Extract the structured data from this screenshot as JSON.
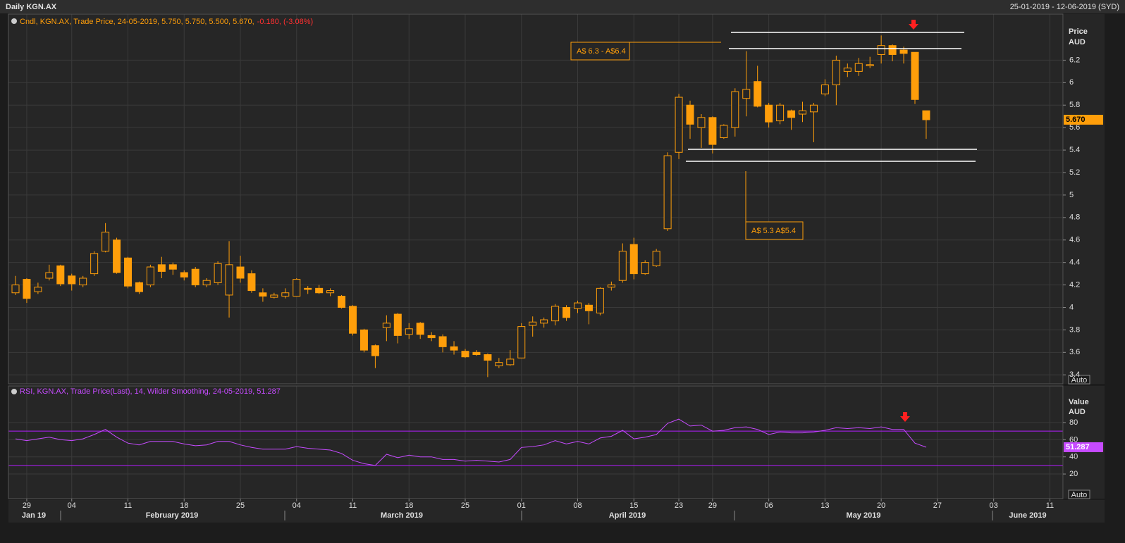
{
  "header": {
    "title": "Daily KGN.AX",
    "range": "25-01-2019 - 12-06-2019 (SYD)"
  },
  "chart_data": [
    {
      "type": "candlestick",
      "legend": "Cndl, KGN.AX, Trade Price, 24-05-2019, 5.750, 5.750, 5.500, 5.670,",
      "legend_change": "-0.180, (-3.08%)",
      "y_axis_label": "Price",
      "y_axis_unit": "AUD",
      "scale_button": "Auto",
      "last_value_label": "5.670",
      "color": "#ff9e0a",
      "annotations": [
        "A$ 6.3 - A$6.4",
        "A$ 5.3  A$5.4"
      ],
      "ylim": [
        3.32,
        6.61
      ],
      "yticks": [
        3.4,
        3.6,
        3.8,
        4,
        4.2,
        4.4,
        4.6,
        4.8,
        5,
        5.2,
        5.4,
        5.6,
        5.8,
        6,
        6.2
      ],
      "grid": true,
      "open": [
        4.13,
        4.25,
        4.14,
        4.26,
        4.37,
        4.28,
        4.2,
        4.3,
        4.5,
        4.6,
        4.44,
        4.22,
        4.2,
        4.38,
        4.38,
        4.31,
        4.34,
        4.2,
        4.22,
        4.11,
        4.36,
        4.3,
        4.13,
        4.09,
        4.1,
        4.1,
        4.17,
        4.17,
        4.13,
        4.1,
        4.01,
        3.8,
        3.66,
        3.82,
        3.94,
        3.76,
        3.86,
        3.75,
        3.74,
        3.65,
        3.61,
        3.6,
        3.58,
        3.48,
        3.49,
        3.55,
        3.84,
        3.86,
        3.88,
        4.0,
        3.99,
        4.02,
        3.95,
        4.18,
        4.24,
        4.56,
        4.3,
        4.37,
        4.7,
        5.38,
        5.8,
        5.6,
        5.69,
        5.51,
        5.6,
        5.86,
        6.01,
        5.8,
        5.66,
        5.75,
        5.72,
        5.74,
        5.9,
        5.98,
        6.1,
        6.1,
        6.15,
        6.25,
        6.33,
        6.29,
        6.27,
        5.75,
        null,
        null,
        null,
        null,
        null,
        null,
        null,
        null,
        null,
        null,
        null
      ],
      "high": [
        4.28,
        4.26,
        4.22,
        4.38,
        4.38,
        4.3,
        4.28,
        4.5,
        4.75,
        4.62,
        4.45,
        4.23,
        4.38,
        4.45,
        4.4,
        4.33,
        4.36,
        4.26,
        4.41,
        4.59,
        4.46,
        4.33,
        4.17,
        4.13,
        4.17,
        4.26,
        4.19,
        4.2,
        4.17,
        4.11,
        4.02,
        3.81,
        3.67,
        3.93,
        3.95,
        3.86,
        3.87,
        3.78,
        3.76,
        3.7,
        3.63,
        3.62,
        3.59,
        3.55,
        3.62,
        3.86,
        3.92,
        3.91,
        4.03,
        4.02,
        4.06,
        4.04,
        4.18,
        4.23,
        4.57,
        4.62,
        4.42,
        4.52,
        5.38,
        5.9,
        5.84,
        5.72,
        5.7,
        5.63,
        5.95,
        6.28,
        6.15,
        5.82,
        5.82,
        5.76,
        5.83,
        5.82,
        6.03,
        6.24,
        6.17,
        6.22,
        6.23,
        6.42,
        6.34,
        6.32,
        6.27,
        5.75,
        null,
        null,
        null,
        null,
        null,
        null,
        null,
        null,
        null,
        null,
        null
      ],
      "low": [
        4.11,
        4.04,
        4.12,
        4.24,
        4.19,
        4.15,
        4.18,
        4.28,
        4.49,
        4.3,
        4.17,
        4.12,
        4.18,
        4.26,
        4.29,
        4.24,
        4.18,
        4.18,
        4.2,
        3.91,
        4.22,
        4.13,
        4.05,
        4.08,
        4.08,
        4.1,
        4.12,
        4.12,
        4.1,
        3.99,
        3.75,
        3.6,
        3.46,
        3.7,
        3.68,
        3.72,
        3.72,
        3.7,
        3.6,
        3.58,
        3.55,
        3.57,
        3.38,
        3.46,
        3.48,
        3.55,
        3.74,
        3.82,
        3.84,
        3.88,
        3.95,
        3.85,
        3.93,
        4.15,
        4.22,
        4.25,
        4.29,
        4.36,
        4.68,
        5.32,
        5.5,
        5.42,
        5.37,
        5.5,
        5.52,
        5.7,
        5.78,
        5.6,
        5.63,
        5.58,
        5.65,
        5.47,
        5.88,
        5.8,
        6.05,
        6.06,
        6.13,
        6.17,
        6.19,
        6.17,
        5.81,
        5.5,
        null,
        null,
        null,
        null,
        null,
        null,
        null,
        null,
        null,
        null,
        null
      ],
      "close": [
        4.2,
        4.08,
        4.18,
        4.31,
        4.21,
        4.21,
        4.26,
        4.48,
        4.67,
        4.31,
        4.19,
        4.14,
        4.36,
        4.32,
        4.34,
        4.27,
        4.2,
        4.24,
        4.39,
        4.38,
        4.26,
        4.15,
        4.1,
        4.11,
        4.13,
        4.25,
        4.16,
        4.13,
        4.15,
        4.0,
        3.77,
        3.62,
        3.57,
        3.86,
        3.75,
        3.81,
        3.76,
        3.73,
        3.65,
        3.62,
        3.56,
        3.58,
        3.53,
        3.51,
        3.54,
        3.83,
        3.87,
        3.89,
        4.01,
        3.91,
        4.04,
        3.97,
        4.17,
        4.2,
        4.5,
        4.3,
        4.4,
        4.5,
        5.35,
        5.87,
        5.63,
        5.69,
        5.45,
        5.62,
        5.92,
        5.94,
        5.79,
        5.65,
        5.8,
        5.69,
        5.75,
        5.8,
        5.98,
        6.2,
        6.13,
        6.17,
        6.16,
        6.33,
        6.25,
        6.26,
        5.85,
        5.67,
        null,
        null,
        null,
        null,
        null,
        null,
        null,
        null,
        null,
        null,
        null
      ]
    },
    {
      "type": "line",
      "legend": "RSI, KGN.AX, Trade Price(Last), 14, Wilder Smoothing, 24-05-2019, 51.287",
      "y_axis_label": "Value",
      "y_axis_unit": "AUD",
      "scale_button": "Auto",
      "last_value_label": "51.287",
      "color": "#c64bff",
      "level_color": "#b21cff",
      "levels": [
        70,
        30
      ],
      "ylim": [
        -8.7,
        122.7
      ],
      "yticks": [
        20,
        40,
        60,
        80
      ],
      "grid": true,
      "categories": [
        null,
        "29",
        null,
        null,
        null,
        "04",
        null,
        null,
        null,
        null,
        "11",
        null,
        null,
        null,
        null,
        "18",
        null,
        null,
        null,
        null,
        "25",
        null,
        null,
        null,
        null,
        "04",
        null,
        null,
        null,
        null,
        "11",
        null,
        null,
        null,
        null,
        "18",
        null,
        null,
        null,
        null,
        "25",
        null,
        null,
        null,
        null,
        "01",
        null,
        null,
        null,
        null,
        "08",
        null,
        null,
        null,
        null,
        "15",
        null,
        null,
        null,
        "23",
        null,
        null,
        "29",
        null,
        null,
        null,
        null,
        "06",
        null,
        null,
        null,
        null,
        "13",
        null,
        null,
        null,
        null,
        "20",
        null,
        null,
        null,
        null,
        "27",
        null,
        null,
        null,
        null,
        "03",
        null,
        null,
        null,
        null,
        "11"
      ],
      "months": [
        "Jan 19",
        "February 2019",
        "March 2019",
        "April 2019",
        "May 2019",
        "June 2019"
      ],
      "values": [
        61,
        59,
        61,
        63,
        60,
        59,
        61,
        66,
        72,
        63,
        56,
        54,
        58,
        58,
        58,
        55,
        53,
        54,
        58,
        58,
        54,
        51,
        49,
        49,
        49,
        52,
        50,
        49,
        48,
        44,
        36,
        32,
        30,
        43,
        39,
        42,
        40,
        40,
        37,
        37,
        35,
        36,
        35,
        34,
        37,
        51,
        52,
        54,
        59,
        55,
        58,
        55,
        62,
        64,
        71,
        61,
        63,
        66,
        79,
        84,
        76,
        77,
        70,
        71,
        74,
        75,
        72,
        66,
        69,
        68,
        68,
        69,
        71,
        74,
        73,
        74,
        73,
        75,
        72,
        72,
        56,
        51.287,
        null,
        null,
        null,
        null,
        null,
        null,
        null,
        null,
        null,
        null,
        null
      ]
    }
  ]
}
